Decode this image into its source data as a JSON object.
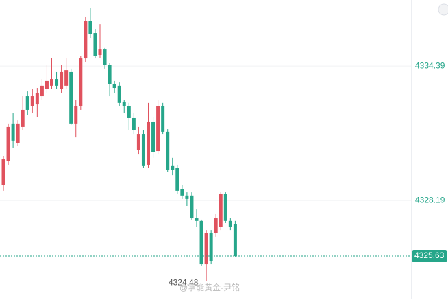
{
  "chart_data": {
    "type": "candlestick",
    "up_color": "#e0525e",
    "down_color": "#26a68a",
    "ylim": [
      4323.67,
      4337.43
    ],
    "yticks": [
      4334.39,
      4328.19
    ],
    "grid": true,
    "last_price": 4325.63,
    "low_marker": 4324.48,
    "watermark": "@掌能黄金-尹铭",
    "open": [
      4328.89,
      4330.0,
      4331.74,
      4330.85,
      4331.58,
      4333.0,
      4332.53,
      4332.62,
      4333.0,
      4333.32,
      4333.48,
      4333.79,
      4333.32,
      4333.48,
      4334.11,
      4331.74,
      4332.53,
      4334.74,
      4336.48,
      4335.91,
      4334.9,
      4335.15,
      4334.43,
      4333.57,
      4333.48,
      4332.75,
      4332.53,
      4331.99,
      4330.53,
      4331.26,
      4329.84,
      4331.8,
      4330.47,
      4332.53,
      4331.36,
      4329.78,
      4329.68,
      4328.73,
      4328.42,
      4328.42,
      4327.37,
      4327.25,
      4325.25,
      4326.68,
      4326.68,
      4326.99,
      4328.48,
      4327.25,
      4327.09
    ],
    "high": [
      4330.22,
      4331.74,
      4332.21,
      4331.89,
      4333.0,
      4333.22,
      4333.32,
      4333.38,
      4333.79,
      4334.43,
      4334.74,
      4334.11,
      4334.43,
      4334.74,
      4334.27,
      4332.84,
      4334.84,
      4336.64,
      4337.05,
      4336.1,
      4336.32,
      4335.22,
      4334.52,
      4333.7,
      4333.63,
      4332.84,
      4332.69,
      4332.21,
      4331.58,
      4331.42,
      4332.69,
      4332.05,
      4332.84,
      4332.69,
      4331.48,
      4330.16,
      4329.84,
      4328.89,
      4328.57,
      4328.57,
      4327.78,
      4327.31,
      4326.83,
      4326.83,
      4327.56,
      4328.57,
      4328.57,
      4327.37,
      4327.25
    ],
    "low": [
      4328.64,
      4329.84,
      4330.63,
      4330.72,
      4331.42,
      4332.12,
      4332.21,
      4332.05,
      4332.84,
      4333.16,
      4333.32,
      4333.32,
      4333.16,
      4333.32,
      4331.67,
      4331.1,
      4332.37,
      4334.58,
      4335.69,
      4334.74,
      4334.74,
      4334.27,
      4333.0,
      4333.16,
      4332.53,
      4332.21,
      4331.42,
      4331.26,
      4330.31,
      4329.68,
      4329.68,
      4330.16,
      4330.31,
      4331.26,
      4329.52,
      4329.36,
      4328.51,
      4328.26,
      4327.94,
      4327.31,
      4326.99,
      4325.16,
      4324.48,
      4325.25,
      4326.52,
      4326.83,
      4327.15,
      4326.83,
      4325.57
    ],
    "close": [
      4330.09,
      4331.58,
      4330.95,
      4331.74,
      4332.37,
      4332.37,
      4333.0,
      4333.16,
      4333.48,
      4333.7,
      4333.79,
      4333.48,
      4334.11,
      4334.2,
      4331.74,
      4332.53,
      4334.74,
      4336.48,
      4335.85,
      4334.84,
      4335.15,
      4334.43,
      4333.57,
      4333.38,
      4332.69,
      4332.53,
      4331.99,
      4331.42,
      4331.26,
      4329.78,
      4331.8,
      4330.41,
      4332.53,
      4331.36,
      4329.59,
      4329.59,
      4328.64,
      4328.42,
      4328.26,
      4327.37,
      4327.25,
      4325.25,
      4326.68,
      4325.41,
      4327.37,
      4328.51,
      4327.25,
      4326.99,
      4325.63
    ]
  }
}
